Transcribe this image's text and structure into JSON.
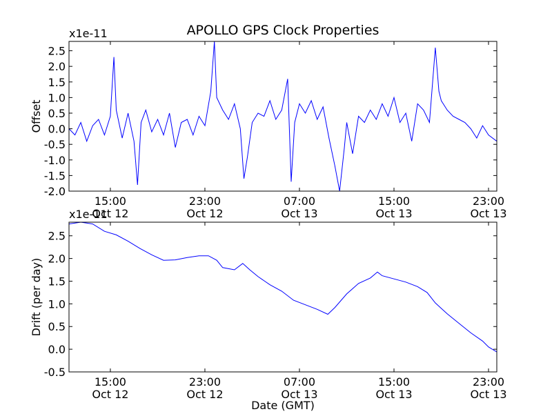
{
  "title": "APOLLO GPS Clock Properties",
  "chart_data": [
    {
      "type": "line",
      "title": "APOLLO GPS Clock Properties",
      "ylabel": "Offset",
      "xlabel": "",
      "y_multiplier": "x1e-11",
      "color": "#0000ff",
      "x_range_hours_since_oct12_0000": [
        11.5,
        47.7
      ],
      "ylim": [
        -2.0,
        2.8
      ],
      "yticks": [
        "-2.0",
        "-1.5",
        "-1.0",
        "-0.5",
        "0.0",
        "0.5",
        "1.0",
        "1.5",
        "2.0",
        "2.5"
      ],
      "xticks": [
        {
          "time": "15:00",
          "date": "Oct 12"
        },
        {
          "time": "23:00",
          "date": "Oct 12"
        },
        {
          "time": "07:00",
          "date": "Oct 13"
        },
        {
          "time": "15:00",
          "date": "Oct 13"
        },
        {
          "time": "23:00",
          "date": "Oct 13"
        }
      ],
      "x_tick_hours": [
        15,
        23,
        31,
        39,
        47
      ],
      "series": [
        {
          "values_note_times_are_oct12_hours": true,
          "points": [
            [
              11.5,
              0.0
            ],
            [
              12.0,
              -0.2
            ],
            [
              12.5,
              0.2
            ],
            [
              13.0,
              -0.4
            ],
            [
              13.5,
              0.1
            ],
            [
              14.0,
              0.3
            ],
            [
              14.5,
              -0.2
            ],
            [
              15.0,
              0.4
            ],
            [
              15.3,
              2.3
            ],
            [
              15.5,
              0.6
            ],
            [
              16.0,
              -0.3
            ],
            [
              16.5,
              0.5
            ],
            [
              17.0,
              -0.4
            ],
            [
              17.3,
              -1.8
            ],
            [
              17.6,
              0.2
            ],
            [
              18.0,
              0.6
            ],
            [
              18.5,
              -0.1
            ],
            [
              19.0,
              0.3
            ],
            [
              19.5,
              -0.2
            ],
            [
              20.0,
              0.5
            ],
            [
              20.5,
              -0.6
            ],
            [
              21.0,
              0.2
            ],
            [
              21.5,
              0.3
            ],
            [
              22.0,
              -0.2
            ],
            [
              22.5,
              0.4
            ],
            [
              23.0,
              0.1
            ],
            [
              23.5,
              1.2
            ],
            [
              23.8,
              2.8
            ],
            [
              24.0,
              1.0
            ],
            [
              24.5,
              0.6
            ],
            [
              25.0,
              0.3
            ],
            [
              25.5,
              0.8
            ],
            [
              26.0,
              0.0
            ],
            [
              26.3,
              -1.6
            ],
            [
              26.6,
              -0.9
            ],
            [
              27.0,
              0.2
            ],
            [
              27.5,
              0.5
            ],
            [
              28.0,
              0.4
            ],
            [
              28.5,
              0.9
            ],
            [
              29.0,
              0.3
            ],
            [
              29.5,
              0.6
            ],
            [
              30.0,
              1.6
            ],
            [
              30.3,
              -1.7
            ],
            [
              30.6,
              0.2
            ],
            [
              31.0,
              0.8
            ],
            [
              31.5,
              0.5
            ],
            [
              32.0,
              0.9
            ],
            [
              32.5,
              0.3
            ],
            [
              33.0,
              0.7
            ],
            [
              33.5,
              -0.3
            ],
            [
              34.0,
              -1.2
            ],
            [
              34.4,
              -2.0
            ],
            [
              34.8,
              -0.6
            ],
            [
              35.0,
              0.2
            ],
            [
              35.5,
              -0.8
            ],
            [
              36.0,
              0.4
            ],
            [
              36.5,
              0.2
            ],
            [
              37.0,
              0.6
            ],
            [
              37.5,
              0.3
            ],
            [
              38.0,
              0.8
            ],
            [
              38.5,
              0.4
            ],
            [
              39.0,
              1.0
            ],
            [
              39.5,
              0.2
            ],
            [
              40.0,
              0.5
            ],
            [
              40.5,
              -0.4
            ],
            [
              41.0,
              0.8
            ],
            [
              41.5,
              0.6
            ],
            [
              42.0,
              0.2
            ],
            [
              42.5,
              2.6
            ],
            [
              42.8,
              1.2
            ],
            [
              43.0,
              0.9
            ],
            [
              43.5,
              0.6
            ],
            [
              44.0,
              0.4
            ],
            [
              44.5,
              0.3
            ],
            [
              45.0,
              0.2
            ],
            [
              45.5,
              0.0
            ],
            [
              46.0,
              -0.3
            ],
            [
              46.5,
              0.1
            ],
            [
              47.0,
              -0.2
            ],
            [
              47.7,
              -0.4
            ]
          ]
        }
      ]
    },
    {
      "type": "line",
      "title": "",
      "ylabel": "Drift (per day)",
      "xlabel": "Date (GMT)",
      "y_multiplier": "x1e-11",
      "color": "#0000ff",
      "x_range_hours_since_oct12_0000": [
        11.5,
        47.7
      ],
      "ylim": [
        -0.5,
        2.8
      ],
      "yticks": [
        "-0.5",
        "0.0",
        "0.5",
        "1.0",
        "1.5",
        "2.0",
        "2.5"
      ],
      "xticks": [
        {
          "time": "15:00",
          "date": "Oct 12"
        },
        {
          "time": "23:00",
          "date": "Oct 12"
        },
        {
          "time": "07:00",
          "date": "Oct 13"
        },
        {
          "time": "15:00",
          "date": "Oct 13"
        },
        {
          "time": "23:00",
          "date": "Oct 13"
        }
      ],
      "x_tick_hours": [
        15,
        23,
        31,
        39,
        47
      ],
      "series": [
        {
          "points": [
            [
              11.5,
              2.76
            ],
            [
              12.5,
              2.8
            ],
            [
              13.5,
              2.76
            ],
            [
              14.5,
              2.6
            ],
            [
              15.5,
              2.52
            ],
            [
              16.5,
              2.38
            ],
            [
              17.5,
              2.22
            ],
            [
              18.5,
              2.08
            ],
            [
              19.5,
              1.96
            ],
            [
              20.5,
              1.97
            ],
            [
              21.5,
              2.02
            ],
            [
              22.5,
              2.06
            ],
            [
              23.3,
              2.06
            ],
            [
              24.0,
              1.96
            ],
            [
              24.5,
              1.8
            ],
            [
              25.5,
              1.75
            ],
            [
              26.2,
              1.89
            ],
            [
              26.8,
              1.75
            ],
            [
              27.5,
              1.6
            ],
            [
              28.5,
              1.42
            ],
            [
              29.5,
              1.28
            ],
            [
              30.5,
              1.08
            ],
            [
              31.5,
              0.98
            ],
            [
              32.5,
              0.88
            ],
            [
              33.4,
              0.77
            ],
            [
              34.0,
              0.92
            ],
            [
              35.0,
              1.22
            ],
            [
              36.0,
              1.45
            ],
            [
              37.0,
              1.57
            ],
            [
              37.6,
              1.7
            ],
            [
              38.0,
              1.62
            ],
            [
              39.0,
              1.55
            ],
            [
              40.0,
              1.48
            ],
            [
              41.0,
              1.38
            ],
            [
              41.8,
              1.25
            ],
            [
              42.5,
              1.02
            ],
            [
              43.5,
              0.78
            ],
            [
              44.5,
              0.57
            ],
            [
              45.5,
              0.36
            ],
            [
              46.5,
              0.18
            ],
            [
              47.0,
              0.05
            ],
            [
              47.7,
              -0.06
            ]
          ]
        }
      ]
    }
  ]
}
